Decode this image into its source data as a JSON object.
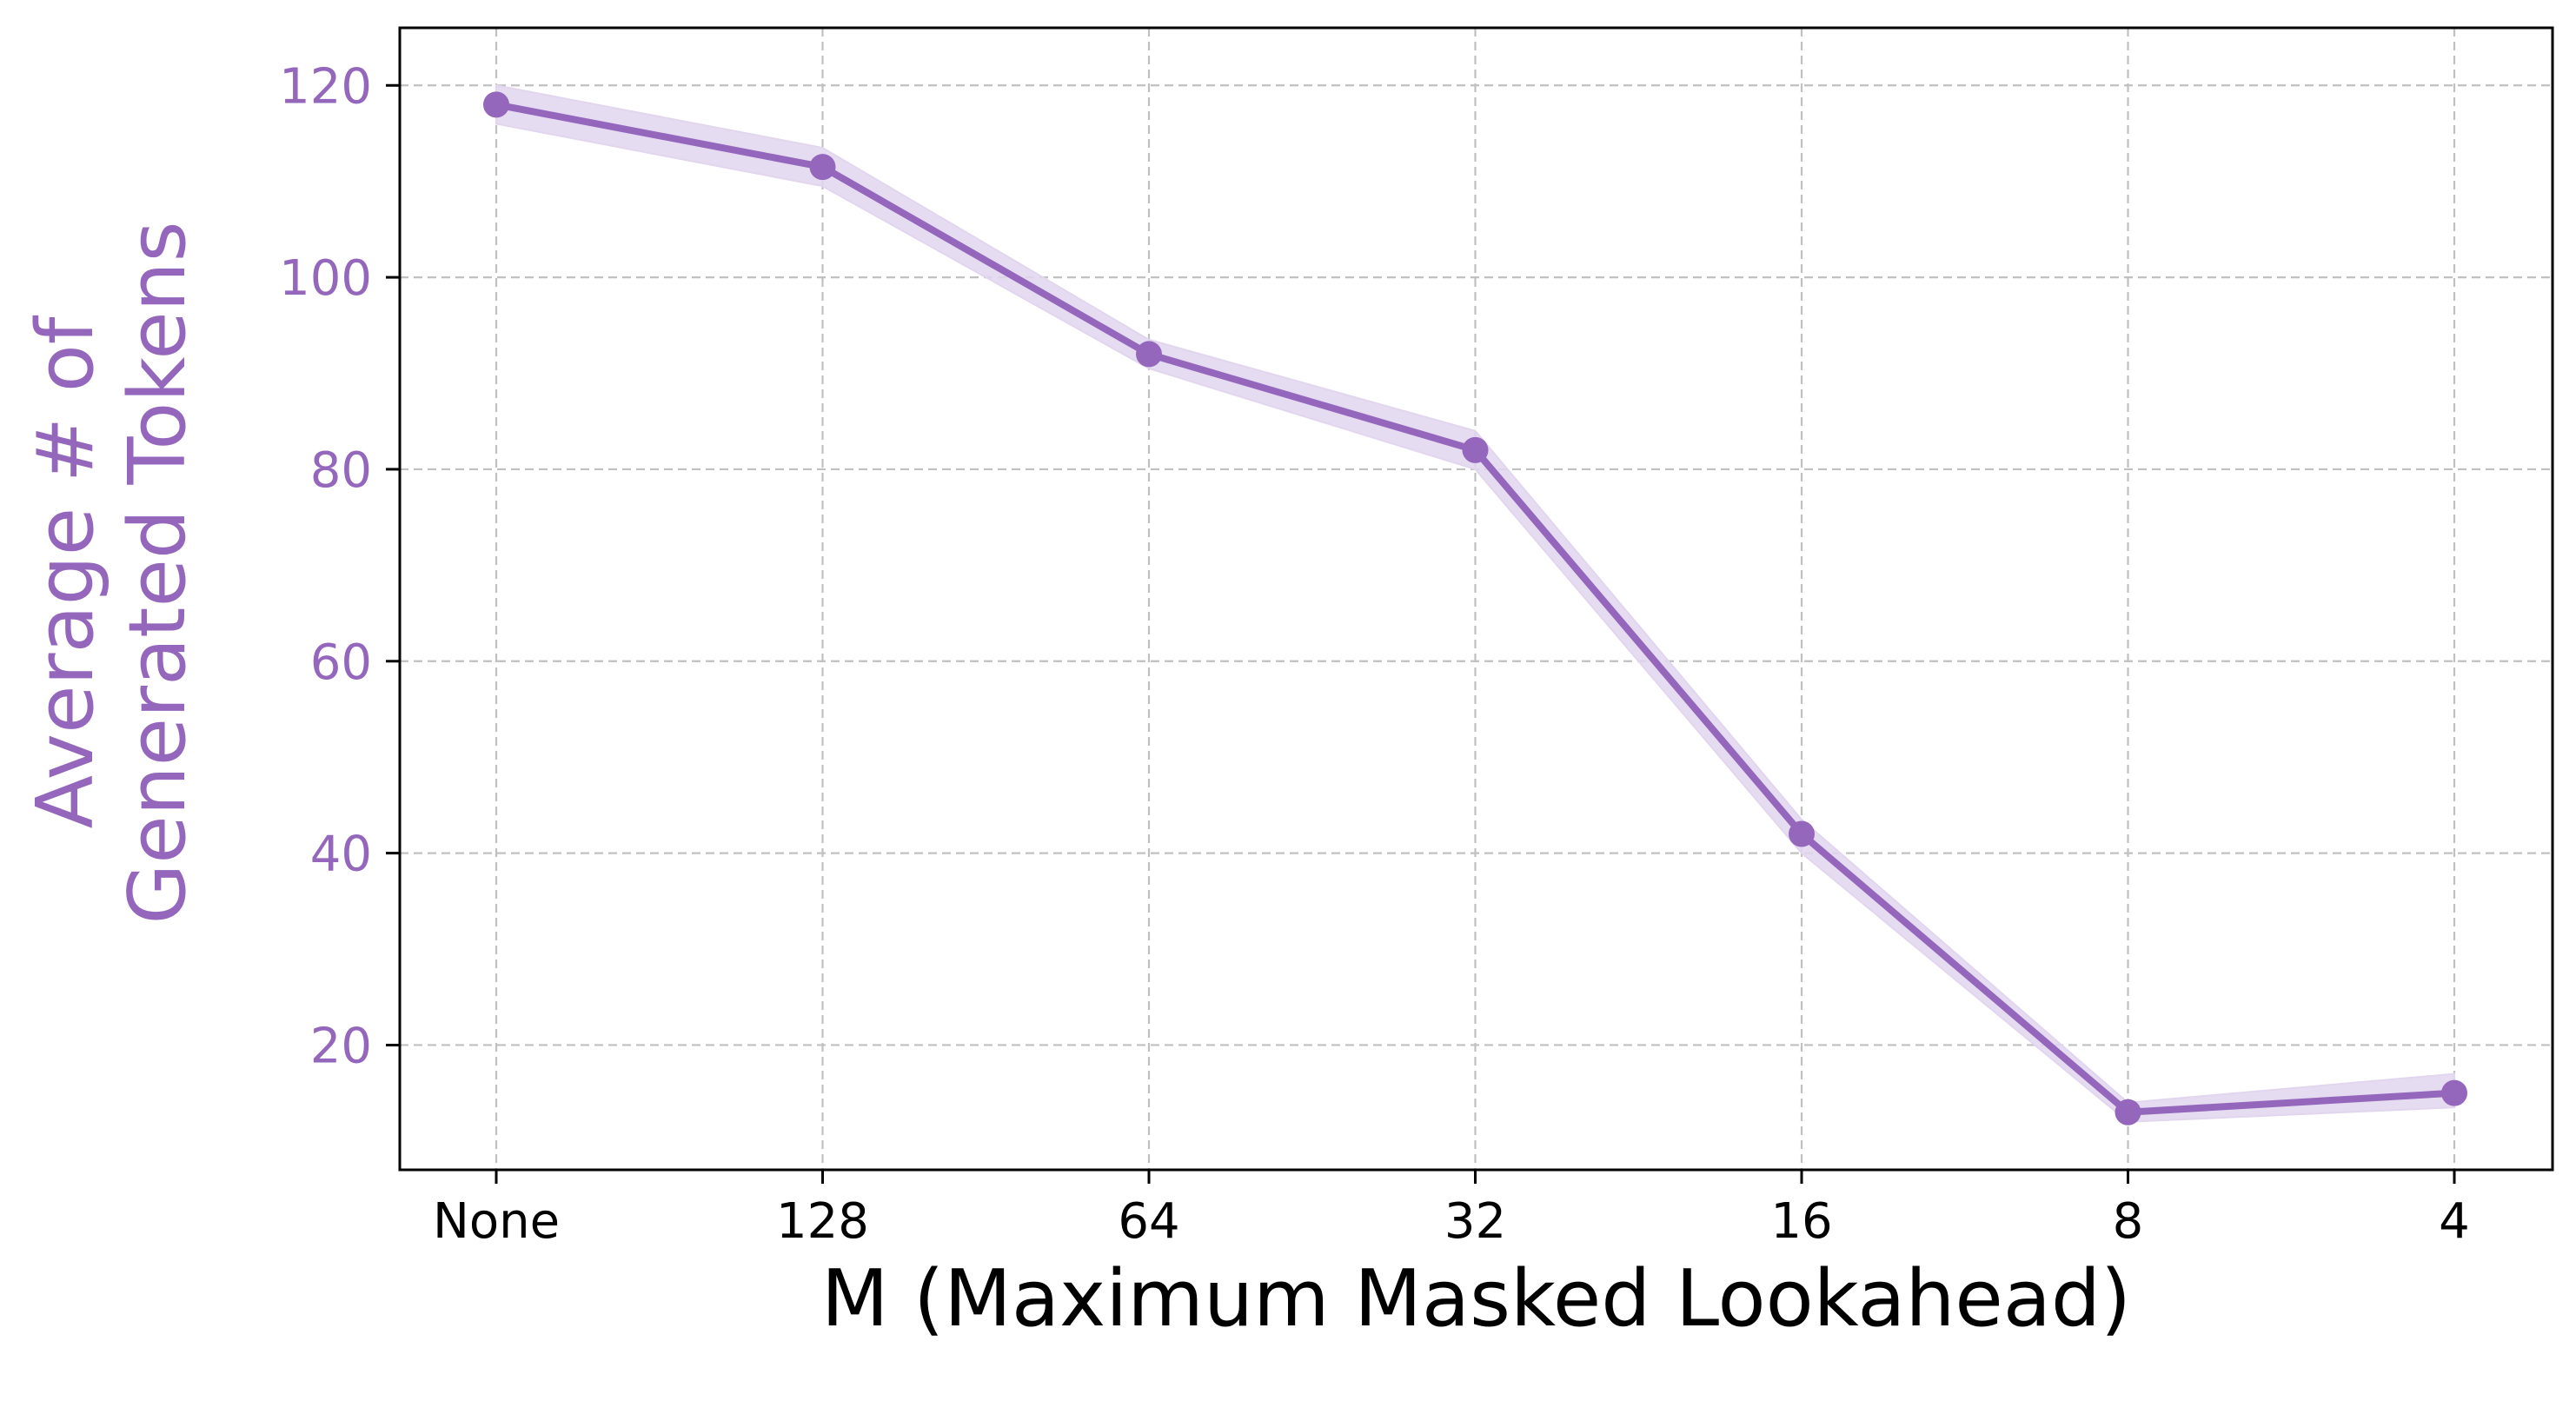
{
  "chart_data": {
    "type": "line",
    "categories": [
      "None",
      "128",
      "64",
      "32",
      "16",
      "8",
      "4"
    ],
    "series": [
      {
        "values": [
          118,
          111.5,
          92,
          82,
          42,
          13,
          15
        ],
        "band_lower": [
          116,
          109.5,
          90.5,
          80,
          40,
          12,
          13.5
        ],
        "band_upper": [
          120,
          113.5,
          93.5,
          84,
          43.5,
          14,
          17
        ],
        "color": "#9467bd"
      }
    ],
    "xlabel": "M (Maximum Masked Lookahead)",
    "ylabel_lines": [
      "Average # of",
      "Generated Tokens"
    ],
    "ylim": [
      7,
      126
    ],
    "yticks": [
      20,
      40,
      60,
      80,
      100,
      120
    ],
    "grid": true,
    "colors": {
      "accent": "#9467bd",
      "band": "#e2d6ef",
      "grid": "#c0c0c0",
      "axis": "#000000"
    }
  }
}
